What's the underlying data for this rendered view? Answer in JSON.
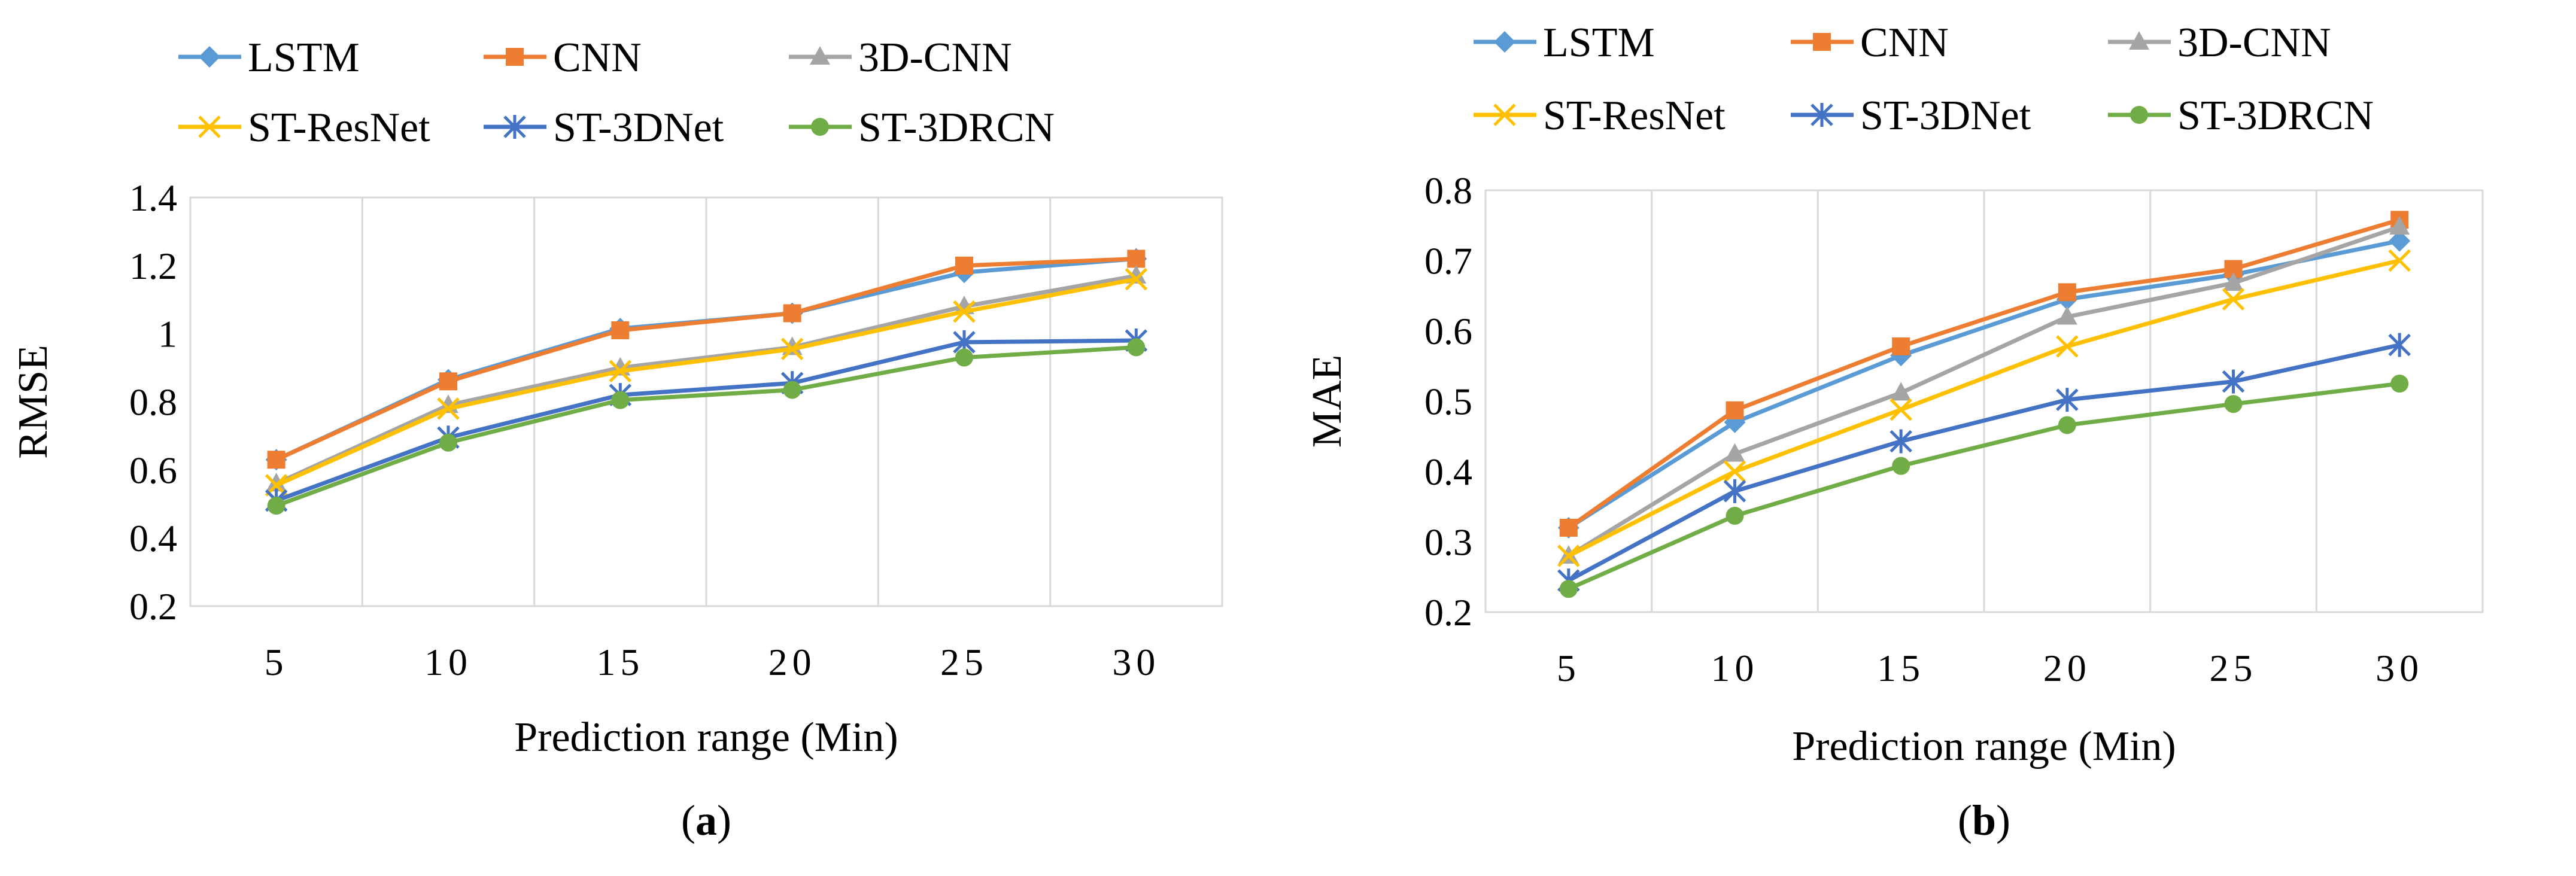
{
  "chart_data": [
    {
      "type": "line",
      "panel_label": "a",
      "categories": [
        "5",
        "10",
        "15",
        "20",
        "25",
        "30"
      ],
      "xlabel": "Prediction range (Min)",
      "ylabel": "RMSE",
      "ylim": [
        0.2,
        1.4
      ],
      "yticks": [
        "0.2",
        "0.4",
        "0.6",
        "0.8",
        "1",
        "1.2",
        "1.4"
      ],
      "grid": "vertical",
      "legend_position": "top",
      "series": [
        {
          "name": "LSTM",
          "color": "#5B9BD5",
          "marker": "diamond",
          "values": [
            0.63,
            0.865,
            1.015,
            1.06,
            1.18,
            1.22
          ]
        },
        {
          "name": "CNN",
          "color": "#ED7D31",
          "marker": "square",
          "values": [
            0.63,
            0.86,
            1.01,
            1.06,
            1.2,
            1.22
          ]
        },
        {
          "name": "3D-CNN",
          "color": "#A5A5A5",
          "marker": "triangle",
          "values": [
            0.56,
            0.79,
            0.9,
            0.96,
            1.08,
            1.17
          ]
        },
        {
          "name": "ST-ResNet",
          "color": "#FFC000",
          "marker": "x",
          "values": [
            0.555,
            0.78,
            0.89,
            0.955,
            1.065,
            1.16
          ]
        },
        {
          "name": "ST-3DNet",
          "color": "#4472C4",
          "marker": "star",
          "values": [
            0.51,
            0.695,
            0.82,
            0.855,
            0.975,
            0.98
          ]
        },
        {
          "name": "ST-3DRCN",
          "color": "#70AD47",
          "marker": "circle",
          "values": [
            0.495,
            0.68,
            0.805,
            0.835,
            0.93,
            0.96
          ]
        }
      ]
    },
    {
      "type": "line",
      "panel_label": "b",
      "categories": [
        "5",
        "10",
        "15",
        "20",
        "25",
        "30"
      ],
      "xlabel": "Prediction range (Min)",
      "ylabel": "MAE",
      "ylim": [
        0.2,
        0.8
      ],
      "yticks": [
        "0.2",
        "0.3",
        "0.4",
        "0.5",
        "0.6",
        "0.7",
        "0.8"
      ],
      "grid": "vertical",
      "legend_position": "top",
      "series": [
        {
          "name": "LSTM",
          "color": "#5B9BD5",
          "marker": "diamond",
          "values": [
            0.32,
            0.47,
            0.565,
            0.645,
            0.68,
            0.728
          ]
        },
        {
          "name": "CNN",
          "color": "#ED7D31",
          "marker": "square",
          "values": [
            0.32,
            0.487,
            0.578,
            0.655,
            0.688,
            0.758
          ]
        },
        {
          "name": "3D-CNN",
          "color": "#A5A5A5",
          "marker": "triangle",
          "values": [
            0.28,
            0.425,
            0.512,
            0.62,
            0.668,
            0.748
          ]
        },
        {
          "name": "ST-ResNet",
          "color": "#FFC000",
          "marker": "x",
          "values": [
            0.28,
            0.4,
            0.488,
            0.578,
            0.645,
            0.7
          ]
        },
        {
          "name": "ST-3DNet",
          "color": "#4472C4",
          "marker": "star",
          "values": [
            0.245,
            0.372,
            0.443,
            0.502,
            0.528,
            0.58
          ]
        },
        {
          "name": "ST-3DRCN",
          "color": "#70AD47",
          "marker": "circle",
          "values": [
            0.233,
            0.337,
            0.408,
            0.466,
            0.496,
            0.525
          ]
        }
      ]
    }
  ]
}
